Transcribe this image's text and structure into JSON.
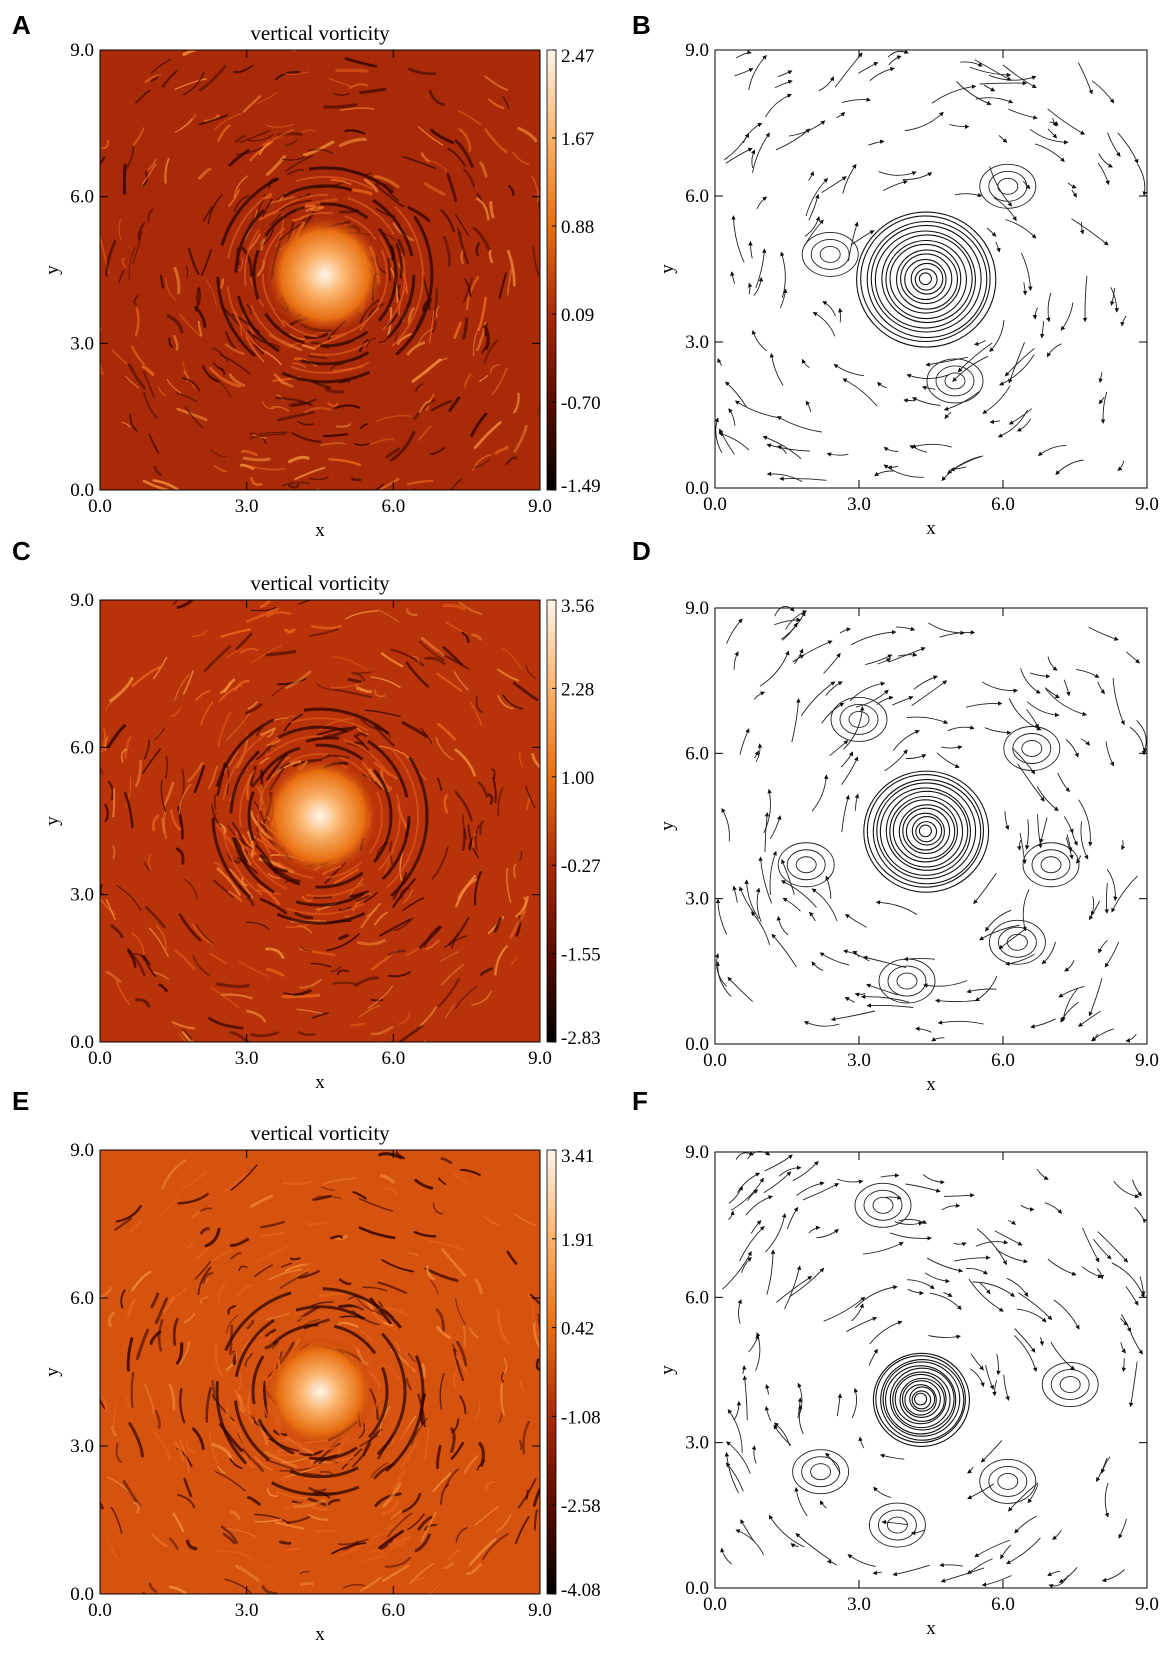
{
  "panel_letters": [
    "A",
    "B",
    "C",
    "D",
    "E",
    "F"
  ],
  "chart_data": [
    {
      "panel": "A",
      "type": "heatmap",
      "title": "vertical vorticity",
      "xlabel": "x",
      "ylabel": "y",
      "xlim": [
        0,
        9
      ],
      "ylim": [
        0,
        9
      ],
      "x_ticks": [
        "0.0",
        "3.0",
        "6.0",
        "9.0"
      ],
      "y_ticks": [
        "0.0",
        "3.0",
        "6.0",
        "9.0"
      ],
      "colorbar_ticks": [
        "2.47",
        "1.67",
        "0.88",
        "0.09",
        "-0.70",
        "-1.49"
      ],
      "colorbar_range": [
        -1.49,
        2.47
      ],
      "vortex_center": [
        4.6,
        4.4
      ],
      "colormap": [
        "#000000",
        "#5a0c00",
        "#a82a08",
        "#e86f12",
        "#fbb26a",
        "#fff6ea"
      ]
    },
    {
      "panel": "B",
      "type": "streamline",
      "xlabel": "x",
      "ylabel": "y",
      "xlim": [
        0,
        9
      ],
      "ylim": [
        0,
        9
      ],
      "x_ticks": [
        "0.0",
        "3.0",
        "6.0",
        "9.0"
      ],
      "y_ticks": [
        "0.0",
        "3.0",
        "6.0",
        "9.0"
      ],
      "vortex_center": [
        4.4,
        4.3
      ],
      "vortex_radius": 1.45,
      "secondary_eddies": [
        [
          6.1,
          6.2
        ],
        [
          5.0,
          2.2
        ],
        [
          2.4,
          4.8
        ]
      ]
    },
    {
      "panel": "C",
      "type": "heatmap",
      "title": "vertical vorticity",
      "xlabel": "x",
      "ylabel": "y",
      "xlim": [
        0,
        9
      ],
      "ylim": [
        0,
        9
      ],
      "x_ticks": [
        "0.0",
        "3.0",
        "6.0",
        "9.0"
      ],
      "y_ticks": [
        "0.0",
        "3.0",
        "6.0",
        "9.0"
      ],
      "colorbar_ticks": [
        "3.56",
        "2.28",
        "1.00",
        "-0.27",
        "-1.55",
        "-2.83"
      ],
      "colorbar_range": [
        -2.83,
        3.56
      ],
      "vortex_center": [
        4.5,
        4.6
      ],
      "colormap": [
        "#000000",
        "#5a0c00",
        "#a82a08",
        "#e86f12",
        "#fbb26a",
        "#fff6ea"
      ]
    },
    {
      "panel": "D",
      "type": "streamline",
      "xlabel": "x",
      "ylabel": "y",
      "xlim": [
        0,
        9
      ],
      "ylim": [
        0,
        9
      ],
      "x_ticks": [
        "0.0",
        "3.0",
        "6.0",
        "9.0"
      ],
      "y_ticks": [
        "0.0",
        "3.0",
        "6.0",
        "9.0"
      ],
      "vortex_center": [
        4.4,
        4.4
      ],
      "vortex_radius": 1.3,
      "secondary_eddies": [
        [
          3.0,
          6.7
        ],
        [
          6.6,
          6.1
        ],
        [
          1.9,
          3.7
        ],
        [
          7.0,
          3.7
        ],
        [
          4.0,
          1.3
        ],
        [
          6.3,
          2.1
        ]
      ]
    },
    {
      "panel": "E",
      "type": "heatmap",
      "title": "vertical vorticity",
      "xlabel": "x",
      "ylabel": "y",
      "xlim": [
        0,
        9
      ],
      "ylim": [
        0,
        9
      ],
      "x_ticks": [
        "0.0",
        "3.0",
        "6.0",
        "9.0"
      ],
      "y_ticks": [
        "0.0",
        "3.0",
        "6.0",
        "9.0"
      ],
      "colorbar_ticks": [
        "3.41",
        "1.91",
        "0.42",
        "-1.08",
        "-2.58",
        "-4.08"
      ],
      "colorbar_range": [
        -4.08,
        3.41
      ],
      "vortex_center": [
        4.5,
        4.1
      ],
      "colormap": [
        "#000000",
        "#5a0c00",
        "#a82a08",
        "#e86f12",
        "#fbb26a",
        "#fff6ea"
      ]
    },
    {
      "panel": "F",
      "type": "streamline",
      "xlabel": "x",
      "ylabel": "y",
      "xlim": [
        0,
        9
      ],
      "ylim": [
        0,
        9
      ],
      "x_ticks": [
        "0.0",
        "3.0",
        "6.0",
        "9.0"
      ],
      "y_ticks": [
        "0.0",
        "3.0",
        "6.0",
        "9.0"
      ],
      "vortex_center": [
        4.3,
        3.9
      ],
      "vortex_radius": 1.0,
      "secondary_eddies": [
        [
          3.5,
          7.9
        ],
        [
          7.4,
          4.2
        ],
        [
          2.2,
          2.4
        ],
        [
          6.1,
          2.2
        ],
        [
          3.8,
          1.3
        ]
      ]
    }
  ]
}
